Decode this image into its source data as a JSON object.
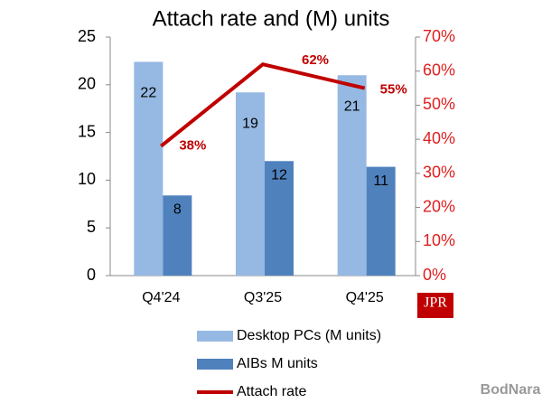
{
  "chart_data": {
    "type": "bar-line",
    "title": "Attach rate and (M) units",
    "categories": [
      "Q4'24",
      "Q3'25",
      "Q4'25"
    ],
    "series": [
      {
        "name": "Desktop PCs (M units)",
        "type": "bar",
        "color": "#95b9e3",
        "values": [
          22.4,
          19.2,
          21
        ],
        "value_labels": [
          "22",
          "19",
          "21"
        ]
      },
      {
        "name": "AIBs M units",
        "type": "bar",
        "color": "#4f81bd",
        "values": [
          8.4,
          12,
          11.4
        ],
        "value_labels": [
          "8",
          "12",
          "11"
        ]
      },
      {
        "name": "Attach rate",
        "type": "line",
        "axis": "y2",
        "color": "#c00000",
        "values": [
          38,
          62,
          55
        ],
        "value_labels": [
          "38%",
          "62%",
          "55%"
        ]
      }
    ],
    "ylim": [
      0,
      25
    ],
    "yticks": [
      0,
      5,
      10,
      15,
      20,
      25
    ],
    "y2lim": [
      0,
      70
    ],
    "y2ticks": [
      {
        "value": 0,
        "label": "0%"
      },
      {
        "value": 10,
        "label": "10%"
      },
      {
        "value": 20,
        "label": "20%"
      },
      {
        "value": 30,
        "label": "30%"
      },
      {
        "value": 40,
        "label": "40%"
      },
      {
        "value": 50,
        "label": "50%"
      },
      {
        "value": 60,
        "label": "60%"
      },
      {
        "value": 70,
        "label": "70%"
      }
    ],
    "y2_color": "#e02020",
    "logo": "JPR",
    "watermark": "BodNara"
  }
}
